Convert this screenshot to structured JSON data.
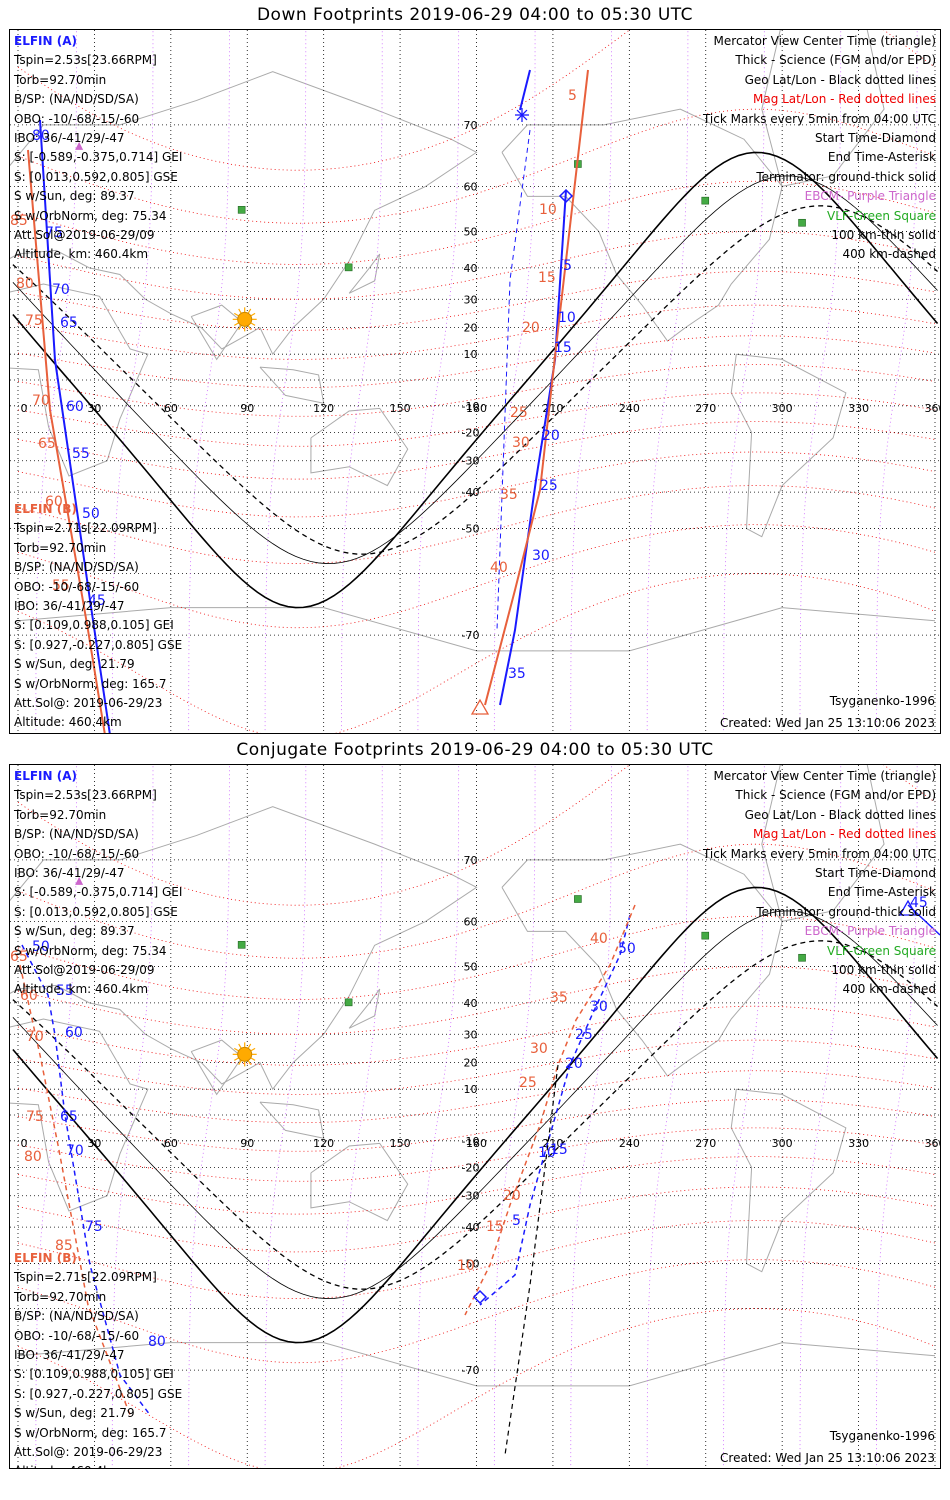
{
  "panels": [
    {
      "title": "Down Footprints 2019-06-29 04:00 to 05:30 UTC",
      "mode": "down"
    },
    {
      "title": "Conjugate Footprints 2019-06-29 04:00 to 05:30 UTC",
      "mode": "conj"
    }
  ],
  "elfin_a": {
    "name": "ELFIN (A)",
    "lines": [
      "Tspin=2.53s[23.66RPM]",
      "Torb=92.70min",
      "B/SP: (NA/ND/SD/SA)",
      "OBO: -10/-68/-15/-60",
      "IBO: 36/-41/29/-47",
      "S: [-0.589,-0.375,0.714] GEI",
      "S: [0.013,0.592,0.805] GSE",
      "S w/Sun, deg: 89.37",
      "S w/OrbNorm, deg: 75.34",
      "Att.Sol@2019-06-29/09",
      "Altitude, km: 460.4km"
    ]
  },
  "elfin_b": {
    "name": "ELFIN (B)",
    "lines": [
      "Tspin=2.71s[22.09RPM]",
      "Torb=92.70min",
      "B/SP: (NA/ND/SD/SA)",
      "OBO: -10/-68/-15/-60",
      "IBO: 36/-41/29/-47",
      "S: [0.109,0.988,0.105] GEI",
      "S: [0.927,-0.227,0.805] GSE",
      "S w/Sun, deg: 21.79",
      "S w/OrbNorm, deg: 165.7",
      "Att.Sol@: 2019-06-29/23",
      "Altitude: 460.4km"
    ]
  },
  "legend": {
    "view": "Mercator View Center Time (triangle)",
    "thick": "Thick - Science (FGM and/or EPD)",
    "geo": "Geo Lat/Lon - Black dotted lines",
    "mag": "Mag Lat/Lon - Red dotted lines",
    "ticks": "Tick Marks every 5min from 04:00 UTC",
    "start": "Start Time-Diamond",
    "end": "End Time-Asterisk",
    "terminator": "Terminator: ground-thick solid",
    "ebcm": "EBCM- Purple Triangle",
    "vlf": "VLF-Green Square",
    "km100": "100 km-thin solid",
    "km400": "400 km-dashed"
  },
  "footer": {
    "model": "Tsyganenko-1996",
    "created": "Created: Wed Jan 25 13:10:06 2023"
  },
  "axes": {
    "lon_ticks": [
      "0",
      "30",
      "60",
      "90",
      "120",
      "150",
      "180",
      "210",
      "240",
      "270",
      "300",
      "330",
      "360"
    ],
    "lat_ticks": [
      "70",
      "60",
      "50",
      "40",
      "30",
      "20",
      "10",
      "-10",
      "-20",
      "-30",
      "-40",
      "-50",
      "-70"
    ]
  },
  "colors": {
    "elfin_a": "#1a1aff",
    "elfin_b": "#e8603c",
    "mag_grid": "#ee0000",
    "geo_grid": "#000000",
    "ebcm": "#cc66cc",
    "vlf": "#44aa44",
    "sun": "#ffaa00"
  },
  "tracks": {
    "down": {
      "a_ticks": [
        "80",
        "75",
        "70",
        "65",
        "60",
        "55",
        "50",
        "45",
        "5",
        "10",
        "15",
        "20",
        "25",
        "30",
        "35"
      ],
      "b_ticks": [
        "85",
        "80",
        "75",
        "70",
        "65",
        "60",
        "55",
        "5",
        "10",
        "15",
        "20",
        "25",
        "30",
        "35",
        "40"
      ]
    },
    "conj": {
      "a_ticks": [
        "50",
        "55",
        "60",
        "65",
        "70",
        "75",
        "80",
        "5",
        "10",
        "15",
        "20",
        "25",
        "30",
        "45",
        "50"
      ],
      "b_ticks": [
        "65",
        "60",
        "70",
        "75",
        "80",
        "85",
        "10",
        "15",
        "20",
        "25",
        "30",
        "35",
        "40"
      ]
    }
  }
}
